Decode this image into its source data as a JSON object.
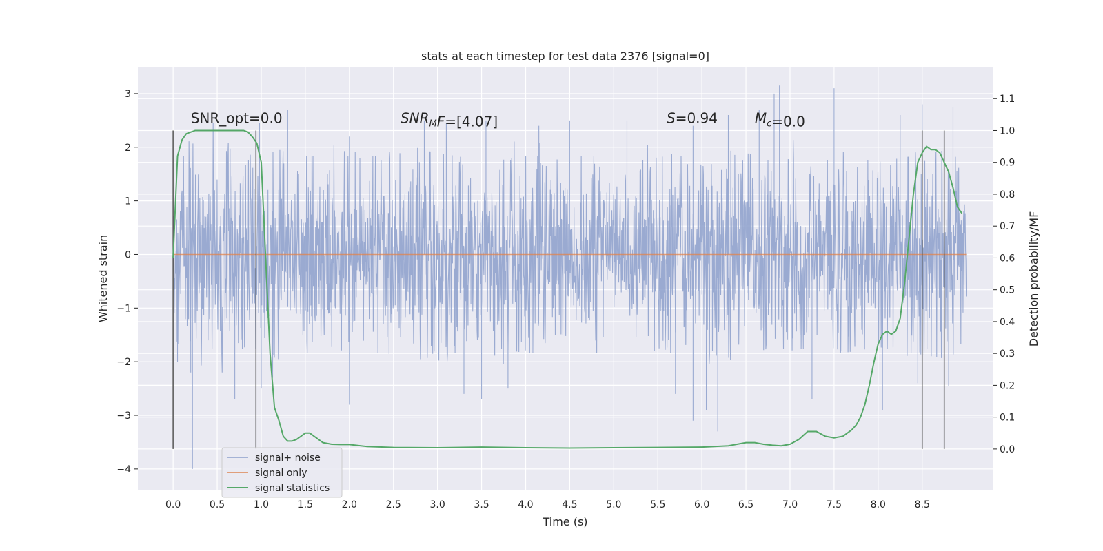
{
  "chart_data": {
    "type": "line",
    "title": "stats at each timestep for test data 2376 [signal=0]",
    "xlabel": "Time (s)",
    "ylabel": "Whitened strain",
    "y2label": "Detection probability/MF",
    "xlim": [
      -0.4,
      9.3
    ],
    "ylim": [
      -4.4,
      3.5
    ],
    "y2lim": [
      -0.13,
      1.2
    ],
    "xticks": [
      0.0,
      0.5,
      1.0,
      1.5,
      2.0,
      2.5,
      3.0,
      3.5,
      4.0,
      4.5,
      5.0,
      5.5,
      6.0,
      6.5,
      7.0,
      7.5,
      8.0,
      8.5
    ],
    "xtick_labels": [
      "0.0",
      "0.5",
      "1.0",
      "1.5",
      "2.0",
      "2.5",
      "3.0",
      "3.5",
      "4.0",
      "4.5",
      "5.0",
      "5.5",
      "6.0",
      "6.5",
      "7.0",
      "7.5",
      "8.0",
      "8.5"
    ],
    "yticks": [
      -4,
      -3,
      -2,
      -1,
      0,
      1,
      2,
      3
    ],
    "ytick_labels": [
      "−4",
      "−3",
      "−2",
      "−1",
      "0",
      "1",
      "2",
      "3"
    ],
    "y2ticks": [
      0.0,
      0.1,
      0.2,
      0.3,
      0.4,
      0.5,
      0.6,
      0.7,
      0.8,
      0.9,
      1.0,
      1.1
    ],
    "y2tick_labels": [
      "0.0",
      "0.1",
      "0.2",
      "0.3",
      "0.4",
      "0.5",
      "0.6",
      "0.7",
      "0.8",
      "0.9",
      "1.0",
      "1.1"
    ],
    "grid": true,
    "legend_position": "bottom-left",
    "colors": {
      "background": "#eaeaf2",
      "grid": "#ffffff",
      "noise": "#8c9fcb",
      "signal_only": "#dd8452",
      "statistics": "#55a868",
      "vlines": "#555555"
    },
    "series": [
      {
        "name": "signal+ noise",
        "axis": "left",
        "style": "noise",
        "x_range": [
          0.0,
          9.0
        ],
        "envelope_upper": [
          [
            0.0,
            1.3
          ],
          [
            0.2,
            1.8
          ],
          [
            0.4,
            1.8
          ],
          [
            0.6,
            2.0
          ],
          [
            0.8,
            1.5
          ],
          [
            1.0,
            1.6
          ],
          [
            1.2,
            1.7
          ],
          [
            1.4,
            1.6
          ],
          [
            1.6,
            1.6
          ],
          [
            1.8,
            1.5
          ],
          [
            2.0,
            1.6
          ],
          [
            2.4,
            1.6
          ],
          [
            2.8,
            1.7
          ],
          [
            3.2,
            1.6
          ],
          [
            3.6,
            1.5
          ],
          [
            4.0,
            1.6
          ],
          [
            4.4,
            1.6
          ],
          [
            4.8,
            1.6
          ],
          [
            5.2,
            1.5
          ],
          [
            5.6,
            1.6
          ],
          [
            6.0,
            1.6
          ],
          [
            6.4,
            1.7
          ],
          [
            6.8,
            1.5
          ],
          [
            7.2,
            1.6
          ],
          [
            7.6,
            1.6
          ],
          [
            8.0,
            1.5
          ],
          [
            8.4,
            1.6
          ],
          [
            8.8,
            1.7
          ],
          [
            9.0,
            1.4
          ]
        ],
        "peaks": [
          [
            0.98,
            2.45
          ],
          [
            1.3,
            2.7
          ],
          [
            2.0,
            2.2
          ],
          [
            2.85,
            2.5
          ],
          [
            3.1,
            2.45
          ],
          [
            3.55,
            2.5
          ],
          [
            4.15,
            2.4
          ],
          [
            4.5,
            2.5
          ],
          [
            5.15,
            2.5
          ],
          [
            5.9,
            2.4
          ],
          [
            6.3,
            2.6
          ],
          [
            6.65,
            2.7
          ],
          [
            6.82,
            3.0
          ],
          [
            6.88,
            3.15
          ],
          [
            7.5,
            3.1
          ],
          [
            8.25,
            2.6
          ],
          [
            8.5,
            2.8
          ],
          [
            8.85,
            2.75
          ]
        ],
        "troughs": [
          [
            0.05,
            -2.0
          ],
          [
            0.2,
            -2.2
          ],
          [
            0.22,
            -4.0
          ],
          [
            0.7,
            -2.7
          ],
          [
            1.0,
            -2.5
          ],
          [
            2.0,
            -2.8
          ],
          [
            3.3,
            -2.6
          ],
          [
            3.5,
            -2.7
          ],
          [
            3.8,
            -2.5
          ],
          [
            5.7,
            -2.6
          ],
          [
            5.9,
            -3.1
          ],
          [
            6.05,
            -2.9
          ],
          [
            6.18,
            -3.3
          ],
          [
            7.25,
            -2.7
          ],
          [
            8.45,
            -2.4
          ],
          [
            8.05,
            -2.9
          ],
          [
            8.8,
            -2.45
          ]
        ]
      },
      {
        "name": "signal only",
        "axis": "left",
        "x": [
          0.0,
          9.0
        ],
        "y": [
          0.0,
          0.0
        ]
      },
      {
        "name": "signal statistics",
        "axis": "right",
        "x": [
          0.0,
          0.05,
          0.1,
          0.15,
          0.25,
          0.35,
          0.5,
          0.6,
          0.7,
          0.8,
          0.85,
          0.9,
          0.95,
          1.0,
          1.05,
          1.1,
          1.15,
          1.2,
          1.25,
          1.3,
          1.35,
          1.4,
          1.45,
          1.5,
          1.55,
          1.6,
          1.7,
          1.8,
          1.9,
          2.0,
          2.2,
          2.5,
          3.0,
          3.5,
          4.0,
          4.5,
          5.0,
          5.5,
          6.0,
          6.3,
          6.5,
          6.6,
          6.7,
          6.8,
          6.9,
          7.0,
          7.1,
          7.2,
          7.25,
          7.3,
          7.4,
          7.5,
          7.6,
          7.7,
          7.75,
          7.8,
          7.85,
          7.9,
          7.95,
          8.0,
          8.05,
          8.1,
          8.15,
          8.2,
          8.25,
          8.3,
          8.35,
          8.4,
          8.45,
          8.5,
          8.55,
          8.6,
          8.65,
          8.7,
          8.75,
          8.8,
          8.85,
          8.9,
          8.95
        ],
        "y": [
          0.6,
          0.92,
          0.97,
          0.99,
          1.0,
          1.0,
          1.0,
          1.0,
          1.0,
          1.0,
          0.995,
          0.98,
          0.96,
          0.9,
          0.6,
          0.3,
          0.13,
          0.09,
          0.04,
          0.025,
          0.025,
          0.03,
          0.04,
          0.05,
          0.05,
          0.04,
          0.02,
          0.015,
          0.014,
          0.014,
          0.008,
          0.005,
          0.004,
          0.006,
          0.004,
          0.003,
          0.004,
          0.005,
          0.006,
          0.01,
          0.02,
          0.02,
          0.015,
          0.012,
          0.01,
          0.015,
          0.03,
          0.055,
          0.055,
          0.055,
          0.04,
          0.035,
          0.04,
          0.06,
          0.075,
          0.1,
          0.14,
          0.2,
          0.27,
          0.33,
          0.36,
          0.37,
          0.36,
          0.37,
          0.41,
          0.52,
          0.66,
          0.8,
          0.9,
          0.93,
          0.95,
          0.94,
          0.94,
          0.93,
          0.9,
          0.87,
          0.82,
          0.76,
          0.74
        ]
      }
    ],
    "vlines": [
      0.0,
      0.94,
      8.5,
      8.75
    ],
    "vline_range": [
      0.0,
      1.0
    ],
    "annotations": [
      {
        "x": 0.2,
        "y": 2.45,
        "parts": [
          {
            "text": "SNR_opt=0.0",
            "italic": false
          }
        ]
      },
      {
        "x": 2.58,
        "y": 2.45,
        "parts": [
          {
            "text": "SNR",
            "italic": true
          },
          {
            "text": "M",
            "italic": true,
            "sub": true
          },
          {
            "text": "F",
            "italic": true
          },
          {
            "text": "=[4.07]",
            "italic": false
          }
        ]
      },
      {
        "x": 5.6,
        "y": 2.45,
        "parts": [
          {
            "text": "S",
            "italic": true
          },
          {
            "text": "=0.94",
            "italic": false
          }
        ]
      },
      {
        "x": 6.6,
        "y": 2.45,
        "parts": [
          {
            "text": "M",
            "italic": true
          },
          {
            "text": "c",
            "italic": true,
            "sub": true
          },
          {
            "text": "=0.0",
            "italic": false
          }
        ]
      }
    ]
  }
}
